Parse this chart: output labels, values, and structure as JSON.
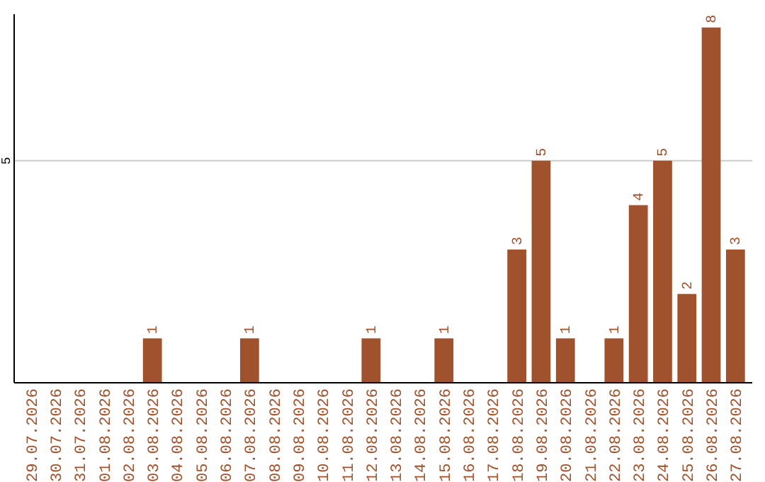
{
  "chart_data": {
    "type": "bar",
    "categories": [
      "29.07.2026",
      "30.07.2026",
      "31.07.2026",
      "01.08.2026",
      "02.08.2026",
      "03.08.2026",
      "04.08.2026",
      "05.08.2026",
      "06.08.2026",
      "07.08.2026",
      "08.08.2026",
      "09.08.2026",
      "10.08.2026",
      "11.08.2026",
      "12.08.2026",
      "13.08.2026",
      "14.08.2026",
      "15.08.2026",
      "16.08.2026",
      "17.08.2026",
      "18.08.2026",
      "19.08.2026",
      "20.08.2026",
      "21.08.2026",
      "22.08.2026",
      "23.08.2026",
      "24.08.2026",
      "25.08.2026",
      "26.08.2026",
      "27.08.2026"
    ],
    "values": [
      0,
      0,
      0,
      0,
      0,
      1,
      0,
      0,
      0,
      1,
      0,
      0,
      0,
      0,
      1,
      0,
      0,
      1,
      0,
      0,
      3,
      5,
      1,
      0,
      1,
      4,
      5,
      2,
      8,
      3
    ],
    "value_labels": [
      null,
      null,
      null,
      null,
      null,
      "1",
      null,
      null,
      null,
      "1",
      null,
      null,
      null,
      null,
      "1",
      null,
      null,
      "1",
      null,
      null,
      "3",
      "5",
      "1",
      null,
      "1",
      "4",
      "5",
      "2",
      "8",
      "3"
    ],
    "color": "#a0522d",
    "ylim": [
      0,
      8.3
    ],
    "yticks": [
      5
    ],
    "grid": "y"
  }
}
